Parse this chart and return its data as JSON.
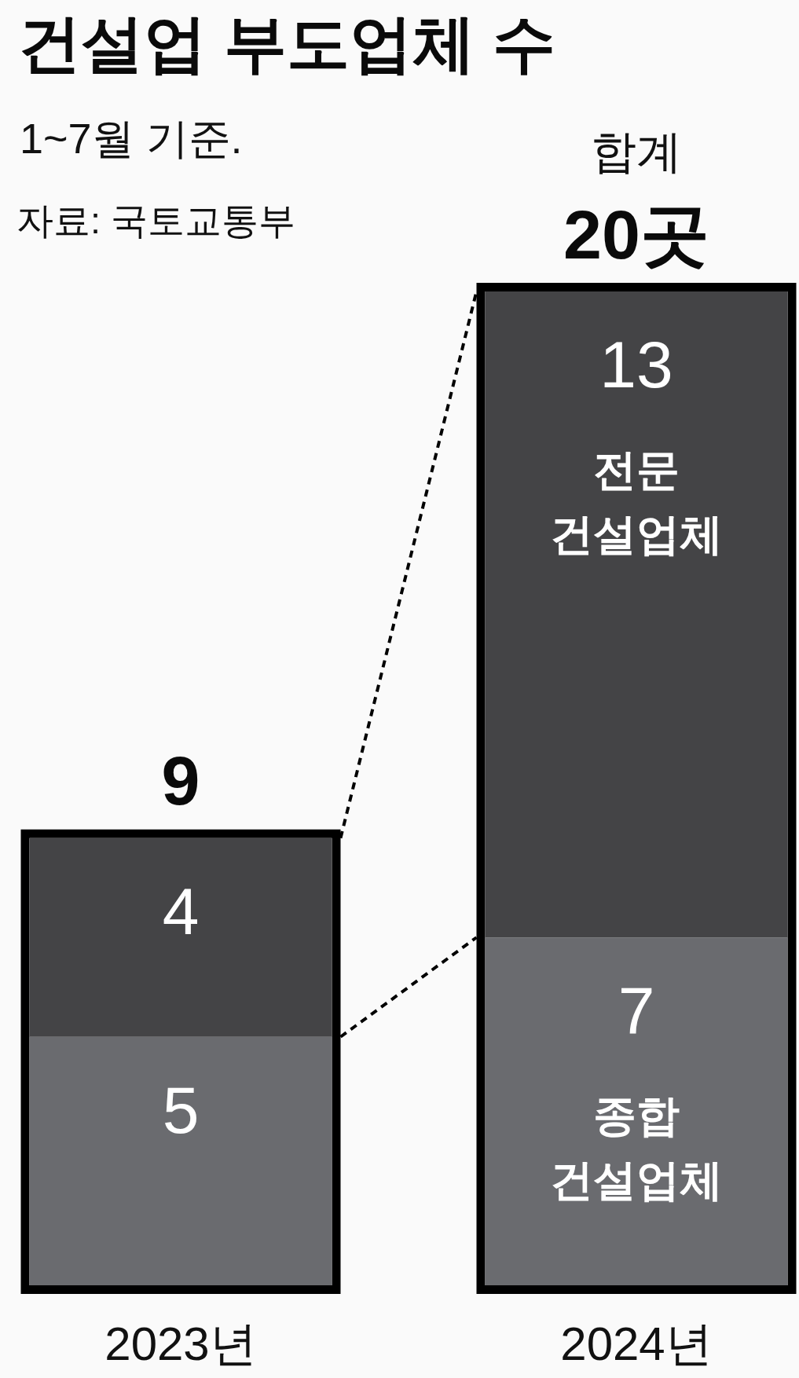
{
  "chart_data": {
    "type": "bar",
    "title": "건설업 부도업체 수",
    "subtitle": "1~7월 기준.",
    "annotations": [
      "자료: 국토교통부",
      {
        "text": "합계",
        "x": "2024년",
        "y": 20
      }
    ],
    "categories": [
      "2023년",
      "2024년"
    ],
    "series": [
      {
        "name": "종합 건설업체",
        "color": "#6a6b6f",
        "values": [
          5,
          7
        ]
      },
      {
        "name": "전문 건설업체",
        "color": "#444446",
        "values": [
          4,
          13
        ]
      }
    ],
    "stacked": true,
    "data_labels": true,
    "totals": [
      "9",
      "20곳"
    ],
    "tick_labels": "x"
  }
}
